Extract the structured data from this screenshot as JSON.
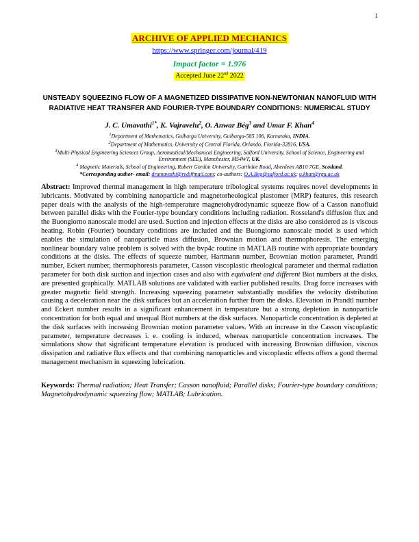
{
  "page": {
    "number": "1"
  },
  "journal": {
    "title": "ARCHIVE OF APPLIED MECHANICS",
    "url": "https://www.springer.com/journal/419",
    "impact": "Impact factor = 1.976",
    "accepted_prefix": "Accepted June 22",
    "accepted_ord": "nd",
    "accepted_year": " 2022"
  },
  "paper": {
    "title": "UNSTEADY SQUEEZING FLOW OF A MAGNETIZED DISSIPATIVE NON-NEWTONIAN NANOFLUID WITH RADIATIVE HEAT TRANSFER AND FOURIER-TYPE BOUNDARY CONDITIONS: NUMERICAL STUDY",
    "authors_html": "J. C. Umavathi<sup>1*</sup>, K. Vajravelu<sup>2</sup>, O. Anwar Bég<sup>3</sup> and Umar F. Khan<sup>4</sup>",
    "affiliations": [
      {
        "sup": "1",
        "text": "Department of Mathematics, Gulbarga University, Gulbarga-585 106, Karnataka, ",
        "country": "INDIA."
      },
      {
        "sup": "2",
        "text": "Department of Mathematics, University of Central Florida, Orlando, Florida-32816, ",
        "country": "USA."
      },
      {
        "sup": "3",
        "text": "Multi-Physical Engineering Sciences Group, Aeronautical/Mechanical Engineering, Salford University, School of Science, Engineering and Environment (SEE), Manchester, M54WT, ",
        "country": "UK."
      },
      {
        "sup": "4",
        "text": " Magnetic Materials, School of Engineering, Robert Gordon University, Garthdee Road, Aberdeen AB10 7GE, ",
        "country": "Scotland."
      }
    ],
    "corresponding": {
      "label": "*Corresponding author- email: ",
      "mail1": "drumavathi@rediffmail.com",
      "sep": "; co-authors: ",
      "mail2": "O.A.Beg@salford.ac.uk",
      "sep2": "; ",
      "mail3": "u.khan@rgu.ac.uk"
    }
  },
  "abstract": {
    "label": "Abstract:",
    "text": " Improved thermal management in high temperature tribological systems requires novel developments in lubricants. Motivated by combining nanoparticle and magnetorheological plastomer (MRP) features, this research paper deals with the analysis of the high-temperature magnetohydrodynamic squeeze flow of a Casson nanofluid between parallel disks with the Fourier-type boundary conditions including radiation. Rosseland's diffusion flux and the Buongiorno nanoscale model are used. Suction and injection effects at the disks are also considered as is viscous heating. Robin (Fourier) boundary conditions are included and the Buongiorno nanoscale model is used which enables the simulation of nanoparticle mass diffusion, Brownian motion and thermophoresis. The emerging nonlinear boundary value problem is solved with the bvp4c routine in MATLAB routine with appropriate boundary conditions at the disks. The effects of squeeze number, Hartmann number, Brownian motion parameter, Prandtl number, Eckert number, thermophoresis parameter, Casson viscoplastic rheological parameter and thermal radiation parameter for both disk suction and injection cases and also with ",
    "em1": "equivalent and different",
    "text2": " Biot numbers at the disks, are presented graphically. MATLAB solutions are validated with earlier published results.  Drag force increases with greater magnetic field strength. Increasing squeezing parameter substantially modifies the velocity distribution causing a deceleration near the disk surfaces but an acceleration further from the disks. Elevation in Prandtl number and Eckert number results in a significant enhancement in temperature but a strong depletion in nanoparticle concentration for both equal and unequal Biot numbers at the disk surfaces. Nanoparticle concentration is depleted at the disk surfaces with increasing Brownian motion parameter values. With an increase in the Casson viscoplastic parameter, temperature decreases i. e. cooling is induced, whereas nanoparticle concentration increases. The simulations show that significant temperature elevation is produced with increasing Brownian diffusion, viscous dissipation and radiative flux effects and that combining nanoparticles and viscoplastic effects offers a good thermal management mechanism in squeezing lubrication."
  },
  "keywords": {
    "label": "Keywords:",
    "text": " Thermal radiation; Heat Transfer; Casson nanofluid; Parallel disks; Fourier-type boundary conditions; Magnetohydrodynamic squeezing flow; MATLAB; Lubrication."
  }
}
